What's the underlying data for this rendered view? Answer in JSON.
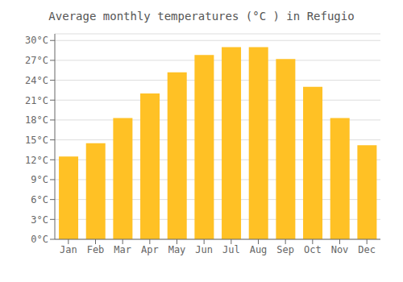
{
  "chart_data": {
    "type": "bar",
    "title": "Average monthly temperatures (°C ) in Refugio",
    "categories": [
      "Jan",
      "Feb",
      "Mar",
      "Apr",
      "May",
      "Jun",
      "Jul",
      "Aug",
      "Sep",
      "Oct",
      "Nov",
      "Dec"
    ],
    "values": [
      12.5,
      14.5,
      18.3,
      22.0,
      25.2,
      27.8,
      29.0,
      29.0,
      27.2,
      23.0,
      18.3,
      14.2
    ],
    "color": "#FFC125",
    "ylim": [
      0,
      31
    ],
    "yticks": [
      {
        "value": 0,
        "label": "0°C"
      },
      {
        "value": 3,
        "label": "3°C"
      },
      {
        "value": 6,
        "label": "6°C"
      },
      {
        "value": 9,
        "label": "9°C"
      },
      {
        "value": 12,
        "label": "12°C"
      },
      {
        "value": 15,
        "label": "15°C"
      },
      {
        "value": 18,
        "label": "18°C"
      },
      {
        "value": 21,
        "label": "21°C"
      },
      {
        "value": 24,
        "label": "24°C"
      },
      {
        "value": 27,
        "label": "27°C"
      },
      {
        "value": 30,
        "label": "30°C"
      }
    ],
    "grid": true
  }
}
